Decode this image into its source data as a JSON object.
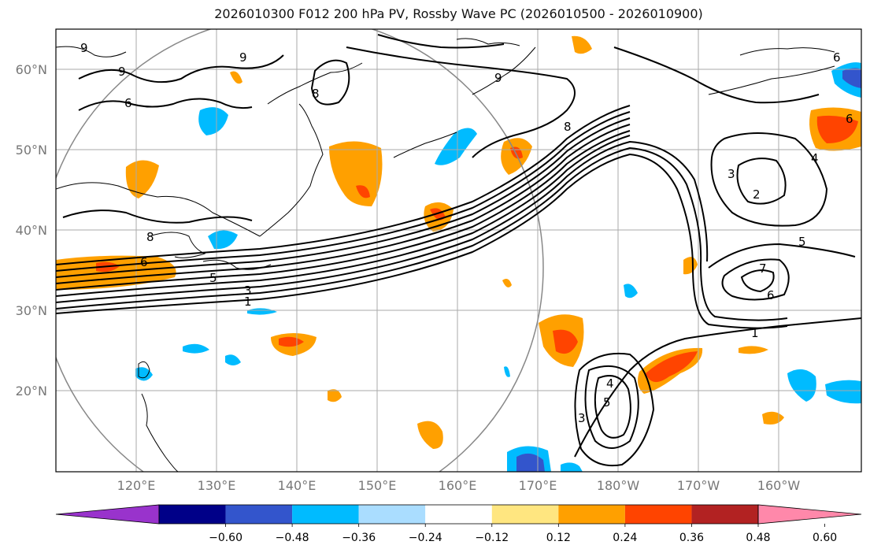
{
  "title": "2026010300 F012 200 hPa PV, Rossby Wave PC (2026010500 - 2026010900)",
  "lat_labels": [
    "60°N",
    "50°N",
    "40°N",
    "30°N",
    "20°N"
  ],
  "lon_labels": [
    "120°E",
    "130°E",
    "140°E",
    "150°E",
    "160°E",
    "170°E",
    "180°W",
    "170°W",
    "160°W"
  ],
  "contour_labels": [
    "9",
    "9",
    "6",
    "8",
    "9",
    "9",
    "8",
    "6",
    "6",
    "4",
    "3",
    "2",
    "8",
    "6",
    "5",
    "3",
    "1",
    "5",
    "7",
    "6",
    "1",
    "4",
    "5",
    "3"
  ],
  "colorbar": {
    "ticks": [
      "−0.60",
      "−0.48",
      "−0.36",
      "−0.24",
      "−0.12",
      "0.12",
      "0.24",
      "0.36",
      "0.48",
      "0.60"
    ],
    "colors": [
      "#9933cc",
      "#000088",
      "#3355cc",
      "#00bbff",
      "#aaddff",
      "#ffffff",
      "#ffe680",
      "#ffa000",
      "#ff4400",
      "#b22222",
      "#ff88aa"
    ]
  },
  "colors": {
    "positive_fill": "#ffa000",
    "strong_positive": "#ff4400",
    "negative_fill": "#00bbff",
    "strong_negative": "#3355cc"
  }
}
